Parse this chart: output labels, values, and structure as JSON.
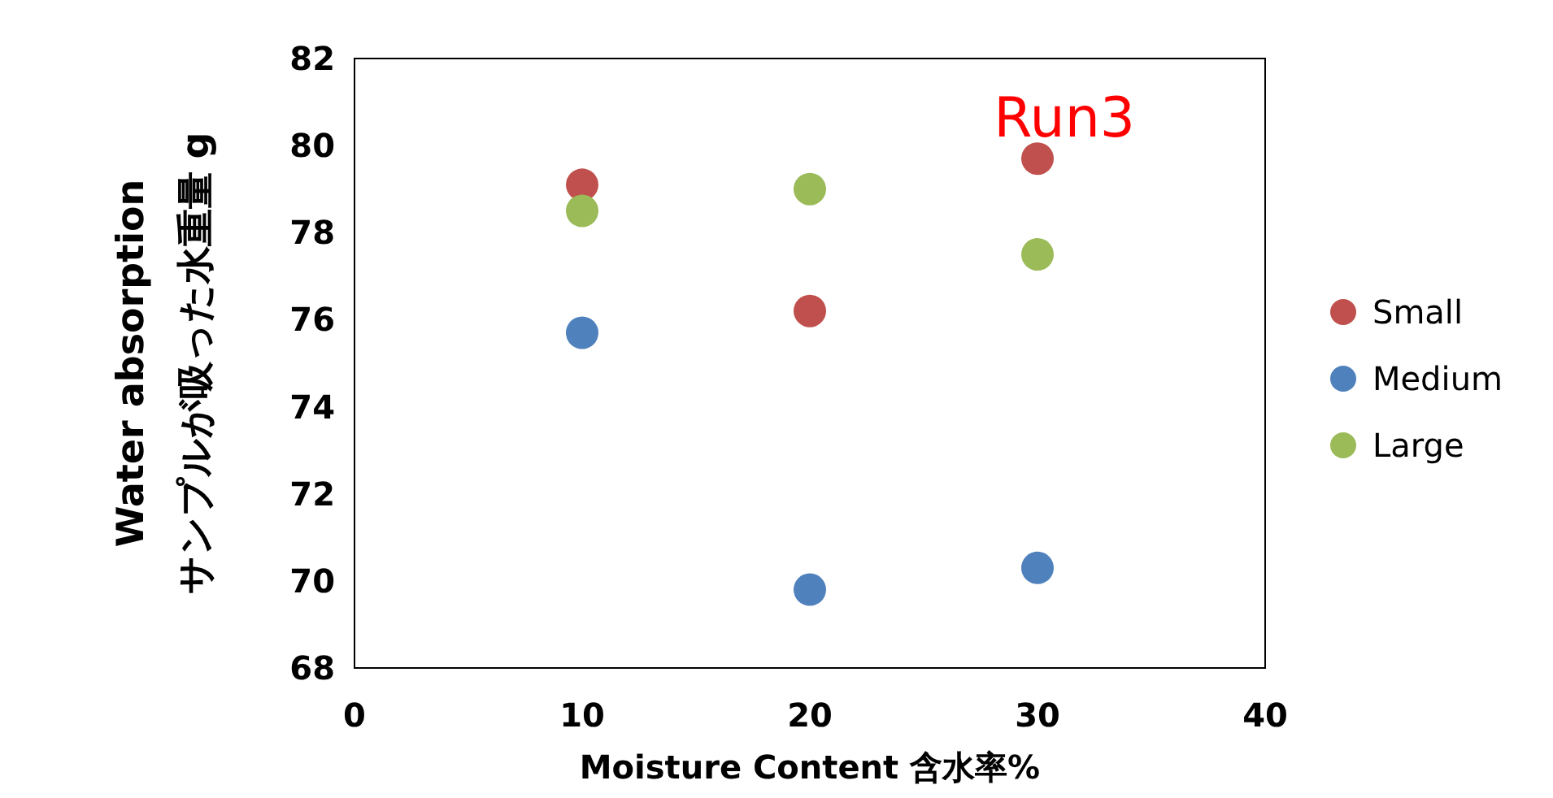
{
  "chart_data": {
    "type": "scatter",
    "xlabel": "Moisture Content 含水率%",
    "ylabel": "Water absorption\nサンプルが吸った水重量 g",
    "x": [
      10,
      20,
      30
    ],
    "series": [
      {
        "name": "Small",
        "color": "#c0504d",
        "values": [
          79.1,
          76.2,
          79.7
        ]
      },
      {
        "name": "Medium",
        "color": "#4f81bd",
        "values": [
          75.7,
          69.8,
          70.3
        ]
      },
      {
        "name": "Large",
        "color": "#9bbb59",
        "values": [
          78.5,
          79.0,
          77.5
        ]
      }
    ],
    "xlim": [
      0,
      40
    ],
    "xticks": [
      0,
      10,
      20,
      30,
      40
    ],
    "ylim": [
      68,
      82
    ],
    "yticks": [
      68,
      70,
      72,
      74,
      76,
      78,
      80,
      82
    ],
    "grid": false,
    "legend": "right",
    "marker": "circle",
    "annotations": [
      "Run3"
    ]
  }
}
